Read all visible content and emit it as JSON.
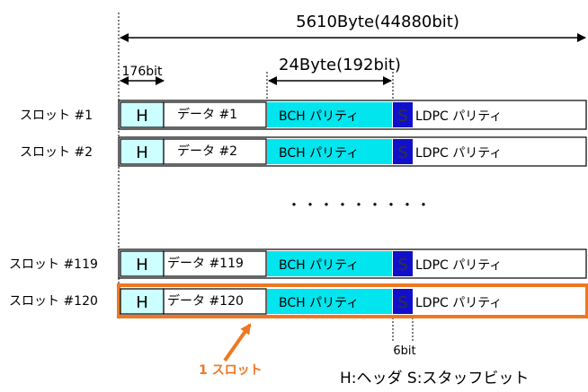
{
  "total_size_label": "5610Byte(44880bit)",
  "header_size_label": "176bit",
  "bch_size_label": "24Byte(192bit)",
  "stuff_size_label": "6bit",
  "ellipsis": "・・・・・・・・・",
  "slot_callout_label": "1 スロット",
  "legend": "H:ヘッダ S:スタッフビット",
  "header_letter": "H",
  "stuff_letter": "S",
  "bch_label": "BCH パリティ",
  "ldpc_label": "LDPC パリティ",
  "slots": [
    {
      "label": "スロット #1",
      "data_label": "データ #1"
    },
    {
      "label": "スロット #2",
      "data_label": "データ #2"
    },
    {
      "label": "スロット #119",
      "data_label": "データ #119"
    },
    {
      "label": "スロット #120",
      "data_label": "データ #120"
    }
  ],
  "colors": {
    "header_fill": "#ccffff",
    "bch_fill": "#00e5ee",
    "stuff_fill": "#1010cc",
    "highlight": "#ee7722",
    "callout_text": "#ee7722"
  }
}
